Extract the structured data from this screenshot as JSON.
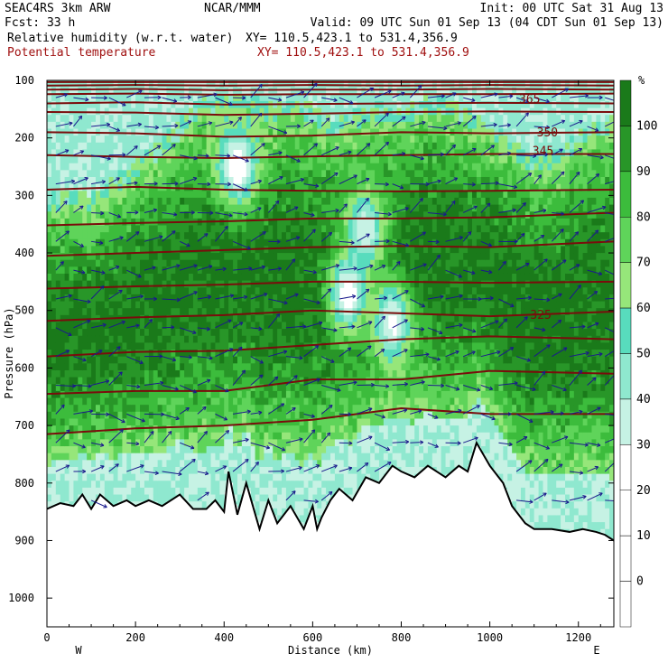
{
  "header": {
    "line1_left": "SEAC4RS  3km ARW",
    "line1_center": "NCAR/MMM",
    "line1_right": "Init: 00 UTC Sat 31 Aug 13",
    "line2_left": "Fcst:   33 h",
    "line2_right": "Valid: 09 UTC Sun 01 Sep 13 (04 CDT Sun 01 Sep 13)",
    "line3_left": "Relative humidity (w.r.t. water)",
    "line3_right": "XY= 110.5,423.1 to 531.4,356.9",
    "line4_left": "Potential temperature",
    "line4_right": "XY= 110.5,423.1 to 531.4,356.9"
  },
  "colors": {
    "rh_text": "#000000",
    "theta_text": "#a01010",
    "theta_contour": "#7a0c0c",
    "wind_arrows": "#1a1a8c",
    "terrain_line": "#000000"
  },
  "chart_data": {
    "type": "heatmap",
    "subtype": "vertical cross-section",
    "xlabel": "Distance (km)",
    "ylabel": "Pressure (hPa)",
    "xlim": [
      0,
      1280
    ],
    "ylim": [
      1050,
      100
    ],
    "x_ticks": [
      0,
      200,
      400,
      600,
      800,
      1000,
      1200
    ],
    "y_ticks": [
      100,
      200,
      300,
      400,
      500,
      600,
      700,
      800,
      900,
      1000
    ],
    "x_end_labels": {
      "left": "W",
      "right": "E"
    },
    "colorbar": {
      "unit": "%",
      "tick_labels": [
        100,
        90,
        80,
        70,
        60,
        50,
        40,
        30,
        20,
        10,
        0
      ],
      "levels": [
        {
          "min": -10,
          "max": 0,
          "color": "#ffffff"
        },
        {
          "min": 0,
          "max": 10,
          "color": "#ffffff"
        },
        {
          "min": 10,
          "max": 20,
          "color": "#ffffff"
        },
        {
          "min": 20,
          "max": 30,
          "color": "#ffffff"
        },
        {
          "min": 30,
          "max": 40,
          "color": "#c6f2e4"
        },
        {
          "min": 40,
          "max": 50,
          "color": "#8fe8cf"
        },
        {
          "min": 50,
          "max": 60,
          "color": "#58dcbd"
        },
        {
          "min": 60,
          "max": 70,
          "color": "#96e67a"
        },
        {
          "min": 70,
          "max": 80,
          "color": "#5fd45a"
        },
        {
          "min": 80,
          "max": 90,
          "color": "#3cbc3c"
        },
        {
          "min": 90,
          "max": 100,
          "color": "#289628"
        },
        {
          "min": 100,
          "max": 110,
          "color": "#1a7a1a"
        }
      ]
    },
    "theta_contour_labels": [
      {
        "text": "365",
        "x": 1090,
        "p": 133
      },
      {
        "text": "350",
        "x": 1130,
        "p": 191
      },
      {
        "text": "345",
        "x": 1120,
        "p": 223
      },
      {
        "text": "325",
        "x": 1115,
        "p": 508
      }
    ],
    "theta_contours": [
      {
        "x": [
          0,
          200,
          400,
          600,
          800,
          1000,
          1280
        ],
        "p": [
          103,
          103,
          103,
          103,
          103,
          103,
          103
        ]
      },
      {
        "x": [
          0,
          200,
          400,
          600,
          800,
          1000,
          1280
        ],
        "p": [
          109,
          108,
          109,
          108,
          109,
          108,
          109
        ]
      },
      {
        "x": [
          0,
          200,
          400,
          600,
          800,
          1000,
          1280
        ],
        "p": [
          116,
          115,
          117,
          116,
          116,
          115,
          116
        ]
      },
      {
        "x": [
          0,
          200,
          400,
          600,
          800,
          1000,
          1280
        ],
        "p": [
          124,
          123,
          125,
          124,
          124,
          124,
          123
        ]
      },
      {
        "x": [
          0,
          200,
          400,
          600,
          800,
          1000,
          1280
        ],
        "p": [
          140,
          138,
          142,
          141,
          140,
          139,
          140
        ]
      },
      {
        "x": [
          0,
          200,
          400,
          600,
          800,
          1000,
          1280
        ],
        "p": [
          155,
          156,
          160,
          158,
          155,
          154,
          155
        ]
      },
      {
        "x": [
          0,
          200,
          400,
          600,
          800,
          1000,
          1280
        ],
        "p": [
          190,
          192,
          198,
          196,
          190,
          192,
          190
        ]
      },
      {
        "x": [
          0,
          200,
          400,
          600,
          800,
          1000,
          1280
        ],
        "p": [
          230,
          233,
          235,
          232,
          230,
          228,
          228
        ]
      },
      {
        "x": [
          0,
          200,
          400,
          600,
          800,
          1000,
          1280
        ],
        "p": [
          290,
          285,
          290,
          292,
          293,
          292,
          290
        ]
      },
      {
        "x": [
          0,
          200,
          400,
          600,
          800,
          1000,
          1280
        ],
        "p": [
          352,
          348,
          345,
          340,
          340,
          338,
          330
        ]
      },
      {
        "x": [
          0,
          200,
          400,
          600,
          800,
          1000,
          1280
        ],
        "p": [
          405,
          400,
          395,
          390,
          388,
          390,
          380
        ]
      },
      {
        "x": [
          0,
          200,
          400,
          600,
          800,
          1000,
          1280
        ],
        "p": [
          462,
          458,
          455,
          450,
          450,
          452,
          450
        ]
      },
      {
        "x": [
          0,
          200,
          400,
          600,
          800,
          1000,
          1280
        ],
        "p": [
          518,
          512,
          508,
          500,
          505,
          510,
          502
        ]
      },
      {
        "x": [
          0,
          200,
          400,
          600,
          800,
          1000,
          1280
        ],
        "p": [
          580,
          572,
          570,
          560,
          550,
          545,
          550
        ]
      },
      {
        "x": [
          0,
          200,
          400,
          600,
          800,
          1000,
          1280
        ],
        "p": [
          645,
          640,
          640,
          620,
          620,
          605,
          610
        ]
      },
      {
        "x": [
          0,
          200,
          400,
          600,
          800,
          1000,
          1280
        ],
        "p": [
          715,
          705,
          700,
          690,
          670,
          680,
          680
        ]
      }
    ],
    "terrain_surface": {
      "x": [
        0,
        30,
        60,
        80,
        100,
        120,
        150,
        180,
        200,
        230,
        260,
        300,
        330,
        360,
        380,
        400,
        410,
        430,
        450,
        480,
        500,
        520,
        550,
        580,
        600,
        610,
        620,
        640,
        660,
        690,
        720,
        750,
        780,
        800,
        830,
        860,
        900,
        930,
        950,
        970,
        1000,
        1030,
        1050,
        1080,
        1100,
        1140,
        1180,
        1210,
        1240,
        1260,
        1280
      ],
      "p": [
        845,
        835,
        840,
        820,
        845,
        820,
        840,
        830,
        840,
        830,
        840,
        820,
        845,
        845,
        830,
        850,
        780,
        855,
        800,
        880,
        830,
        870,
        840,
        880,
        840,
        880,
        860,
        830,
        810,
        830,
        790,
        800,
        770,
        780,
        790,
        770,
        790,
        770,
        780,
        730,
        770,
        800,
        840,
        870,
        880,
        880,
        885,
        880,
        885,
        890,
        900
      ]
    },
    "humidity_cloud_top": {
      "x": [
        0,
        50,
        100,
        150,
        200,
        250,
        300,
        350,
        400,
        450,
        500,
        550,
        600,
        650,
        700,
        750,
        800,
        850,
        900,
        950,
        1000,
        1050,
        1100,
        1150,
        1200,
        1250,
        1280
      ],
      "p": [
        330,
        320,
        330,
        300,
        270,
        240,
        200,
        160,
        150,
        150,
        170,
        160,
        170,
        200,
        180,
        170,
        180,
        160,
        160,
        180,
        200,
        230,
        260,
        250,
        220,
        200,
        190
      ]
    },
    "dry_pockets": [
      {
        "x_center": 680,
        "p_center": 470,
        "rh": 20
      },
      {
        "x_center": 780,
        "p_center": 520,
        "rh": 25
      },
      {
        "x_center": 720,
        "p_center": 360,
        "rh": 30
      },
      {
        "x_center": 430,
        "p_center": 250,
        "rh": 20
      }
    ],
    "wind_vectors_note": "vertical-plane wind arrows across the section",
    "title": "",
    "grid": false
  }
}
